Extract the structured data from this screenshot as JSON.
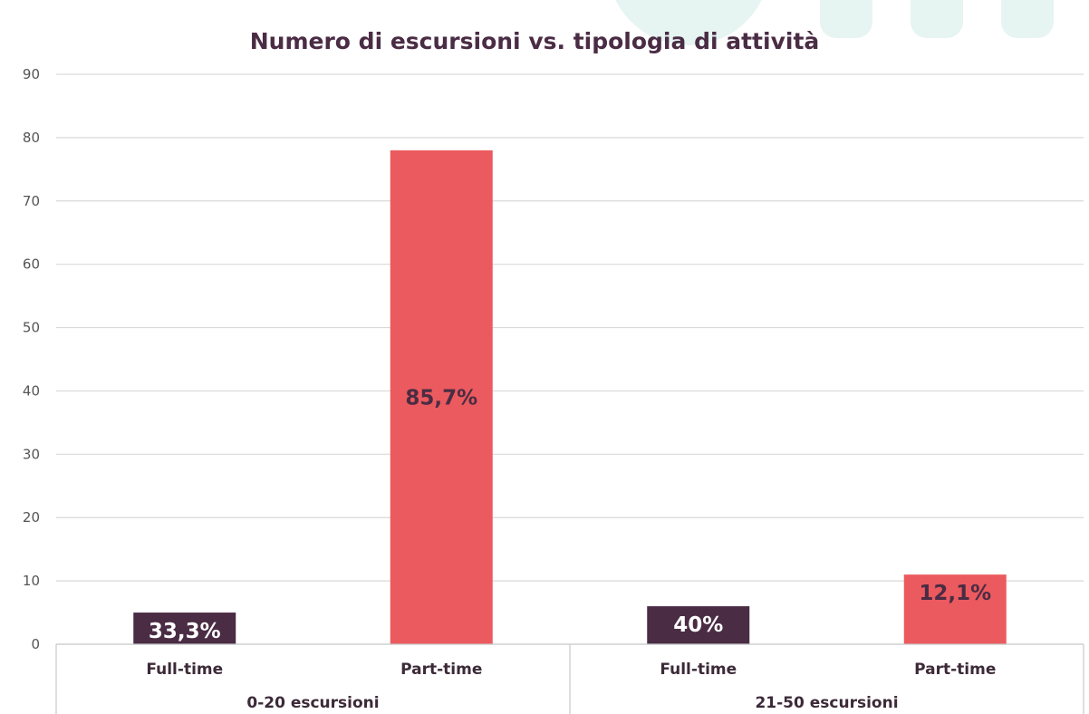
{
  "chart_data": {
    "type": "bar",
    "title": "Numero di escursioni vs. tipologia di attività",
    "xlabel": "",
    "ylabel": "",
    "ylim": [
      0,
      90
    ],
    "yticks": [
      0,
      10,
      20,
      30,
      40,
      50,
      60,
      70,
      80,
      90
    ],
    "grid": true,
    "legend": "none",
    "groups": [
      {
        "name": "0-20 escursioni",
        "bars": [
          {
            "category": "Full-time",
            "value": 5,
            "label": "33,3%",
            "color": "#4a2c44",
            "label_color": "#ffffff"
          },
          {
            "category": "Part-time",
            "value": 78,
            "label": "85,7%",
            "color": "#eb5a5e",
            "label_color": "#4a2c44"
          }
        ]
      },
      {
        "name": "21-50 escursioni",
        "bars": [
          {
            "category": "Full-time",
            "value": 6,
            "label": "40%",
            "color": "#4a2c44",
            "label_color": "#ffffff"
          },
          {
            "category": "Part-time",
            "value": 11,
            "label": "12,1%",
            "color": "#eb5a5e",
            "label_color": "#4a2c44"
          }
        ]
      }
    ]
  }
}
